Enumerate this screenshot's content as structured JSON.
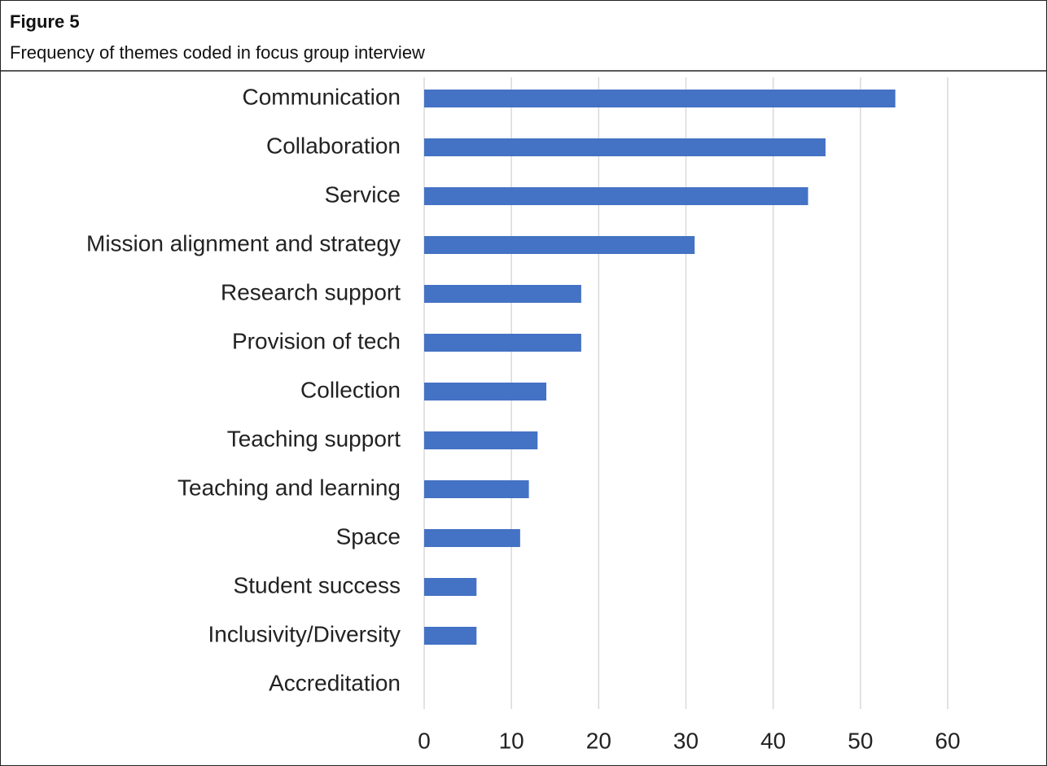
{
  "chart_data": {
    "type": "bar",
    "orientation": "horizontal",
    "figure_label": "Figure 5",
    "title": "Frequency of themes coded in focus group interview",
    "categories": [
      "Communication",
      "Collaboration",
      "Service",
      "Mission alignment and strategy",
      "Research support",
      "Provision of tech",
      "Collection",
      "Teaching support",
      "Teaching and learning",
      "Space",
      "Student success",
      "Inclusivity/Diversity",
      "Accreditation"
    ],
    "values": [
      54,
      46,
      44,
      31,
      18,
      18,
      14,
      13,
      12,
      11,
      6,
      6,
      0
    ],
    "color": "#4472c4",
    "xlim": [
      0,
      60
    ],
    "xticks": [
      0,
      10,
      20,
      30,
      40,
      50,
      60
    ],
    "grid": true
  }
}
